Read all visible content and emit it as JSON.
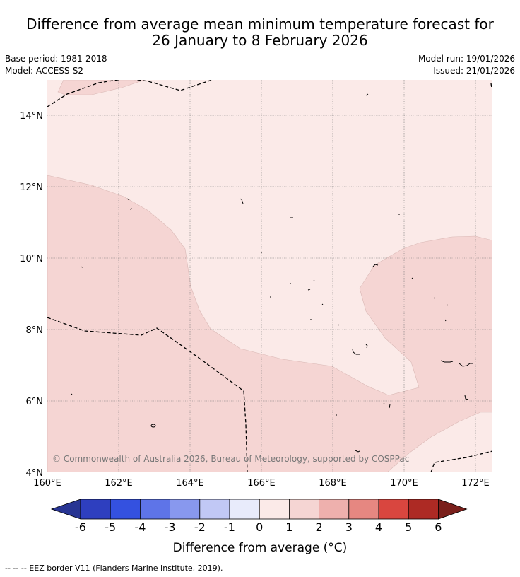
{
  "header": {
    "title_line1": "Difference from average mean minimum temperature forecast for",
    "title_line2": "26 January to 8 February 2026",
    "base_period": "Base period: 1981-2018",
    "model": "Model: ACCESS-S2",
    "model_run": "Model run: 19/01/2026",
    "issued": "Issued: 21/01/2026"
  },
  "map": {
    "lat_labels": [
      "14°N",
      "12°N",
      "10°N",
      "8°N",
      "6°N",
      "4°N"
    ],
    "lon_labels": [
      "160°E",
      "162°E",
      "164°E",
      "166°E",
      "168°E",
      "170°E",
      "172°E"
    ],
    "copyright": "© Commonwealth of Australia 2026, Bureau of Meteorology, supported by COSPPac",
    "colors": {
      "band_0_1": "#fbeae8",
      "band_1_2": "#f5d5d3",
      "border": "#000000"
    }
  },
  "colorbar": {
    "ticks": [
      "-6",
      "-5",
      "-4",
      "-3",
      "-2",
      "-1",
      "0",
      "1",
      "2",
      "3",
      "4",
      "5",
      "6"
    ],
    "label": "Difference from average (°C)",
    "colors": [
      "#283593",
      "#2e3fbf",
      "#3451e0",
      "#5e74e8",
      "#8898ee",
      "#c1c8f5",
      "#e8ebfb",
      "#fbeae8",
      "#f5d5d3",
      "#eeb0ad",
      "#e68781",
      "#d9463f",
      "#ad2a24",
      "#7a1f1b"
    ]
  },
  "footer": {
    "legend_text": "--  --  -- EEZ border V11 (Flanders Marine Institute, 2019)."
  }
}
